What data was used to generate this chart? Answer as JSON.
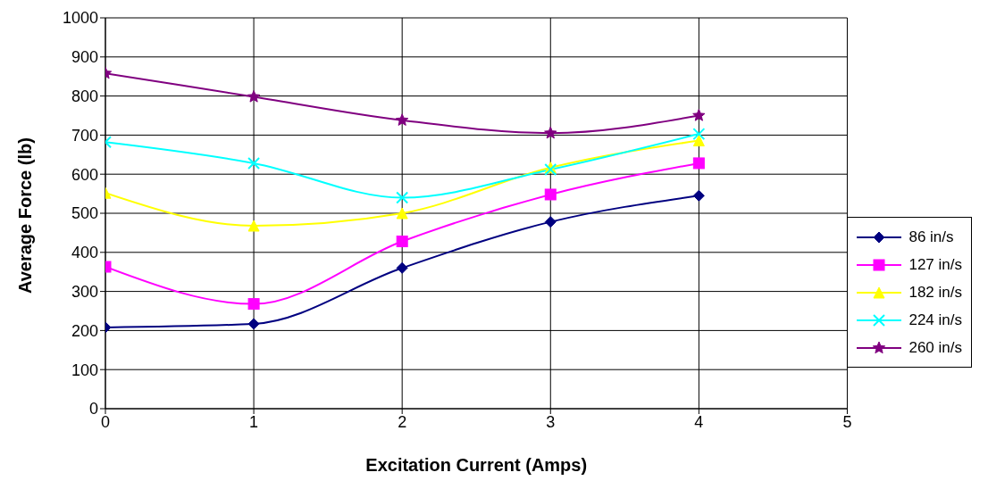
{
  "chart_data": {
    "type": "line",
    "xlabel": "Excitation Current (Amps)",
    "ylabel": "Average Force (lb)",
    "x": [
      0,
      1,
      2,
      3,
      4
    ],
    "series": [
      {
        "name": "86 in/s",
        "color": "#000080",
        "marker": "diamond",
        "values": [
          208,
          217,
          360,
          478,
          545
        ]
      },
      {
        "name": "127 in/s",
        "color": "#ff00ff",
        "marker": "square",
        "values": [
          363,
          268,
          428,
          548,
          628
        ]
      },
      {
        "name": "182 in/s",
        "color": "#ffff00",
        "marker": "triangle",
        "values": [
          552,
          468,
          500,
          617,
          686
        ]
      },
      {
        "name": "224 in/s",
        "color": "#00ffff",
        "marker": "cross",
        "values": [
          682,
          628,
          540,
          612,
          703
        ]
      },
      {
        "name": "260 in/s",
        "color": "#800080",
        "marker": "star",
        "values": [
          858,
          798,
          738,
          705,
          750
        ]
      }
    ],
    "xlim": [
      0,
      5
    ],
    "xticks": [
      0,
      1,
      2,
      3,
      4,
      5
    ],
    "ylim": [
      0,
      1000
    ],
    "yticks": [
      0,
      100,
      200,
      300,
      400,
      500,
      600,
      700,
      800,
      900,
      1000
    ],
    "grid": true,
    "legend": "right",
    "line_style": "solid"
  }
}
